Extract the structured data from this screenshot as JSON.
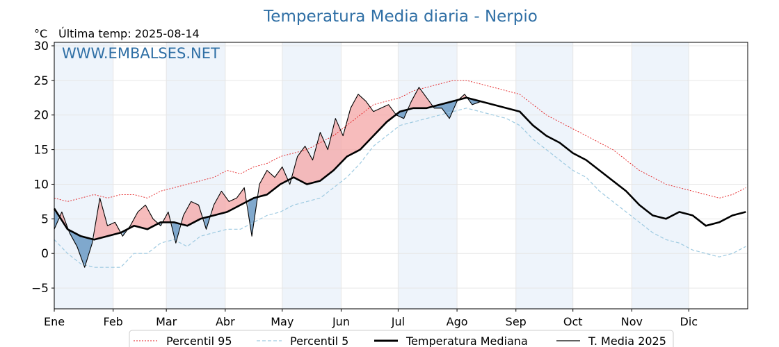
{
  "chart_data": {
    "type": "line",
    "title": "Temperatura Media diaria - Nerpio",
    "unit": "°C",
    "last_temp_label": "Última temp: 2025-08-14",
    "watermark": "WWW.EMBALSES.NET",
    "ylim": [
      -8,
      30.5
    ],
    "yticks": [
      -5,
      0,
      5,
      10,
      15,
      20,
      25,
      30
    ],
    "xlim": [
      1,
      366
    ],
    "months": [
      {
        "label": "Ene",
        "day": 1
      },
      {
        "label": "Feb",
        "day": 32
      },
      {
        "label": "Mar",
        "day": 60
      },
      {
        "label": "Abr",
        "day": 91
      },
      {
        "label": "May",
        "day": 121
      },
      {
        "label": "Jun",
        "day": 152
      },
      {
        "label": "Jul",
        "day": 182
      },
      {
        "label": "Ago",
        "day": 213
      },
      {
        "label": "Sep",
        "day": 244
      },
      {
        "label": "Oct",
        "day": 274
      },
      {
        "label": "Nov",
        "day": 305
      },
      {
        "label": "Dic",
        "day": 335
      }
    ],
    "grid": true,
    "legend_position": "bottom",
    "colors": {
      "p95": "#e31a1c",
      "p5": "#9ecae1",
      "median": "#000000",
      "current": "#000000",
      "above_fill": "#f4a6a6",
      "below_fill": "#6b9ac4",
      "shade": "#eef4fb",
      "title": "#2f6fa5"
    },
    "series": [
      {
        "key": "p95",
        "name": "Percentil 95",
        "x": [
          1,
          8,
          15,
          22,
          29,
          36,
          43,
          50,
          57,
          64,
          71,
          78,
          85,
          92,
          99,
          106,
          113,
          120,
          127,
          134,
          141,
          148,
          155,
          162,
          169,
          176,
          183,
          190,
          197,
          204,
          211,
          218,
          225,
          232,
          239,
          246,
          253,
          260,
          267,
          274,
          281,
          288,
          295,
          302,
          309,
          316,
          323,
          330,
          337,
          344,
          351,
          358,
          365
        ],
        "values": [
          8.0,
          7.5,
          8.0,
          8.5,
          8.0,
          8.5,
          8.5,
          8.0,
          9.0,
          9.5,
          10.0,
          10.5,
          11.0,
          12.0,
          11.5,
          12.5,
          13.0,
          14.0,
          14.5,
          15.0,
          16.0,
          17.0,
          18.5,
          20.0,
          21.5,
          22.0,
          22.5,
          23.5,
          24.0,
          24.5,
          25.0,
          25.0,
          24.5,
          24.0,
          23.5,
          23.0,
          21.5,
          20.0,
          19.0,
          18.0,
          17.0,
          16.0,
          15.0,
          13.5,
          12.0,
          11.0,
          10.0,
          9.5,
          9.0,
          8.5,
          8.0,
          8.5,
          9.5
        ]
      },
      {
        "key": "p5",
        "name": "Percentil 5",
        "x": [
          1,
          8,
          15,
          22,
          29,
          36,
          43,
          50,
          57,
          64,
          71,
          78,
          85,
          92,
          99,
          106,
          113,
          120,
          127,
          134,
          141,
          148,
          155,
          162,
          169,
          176,
          183,
          190,
          197,
          204,
          211,
          218,
          225,
          232,
          239,
          246,
          253,
          260,
          267,
          274,
          281,
          288,
          295,
          302,
          309,
          316,
          323,
          330,
          337,
          344,
          351,
          358,
          365
        ],
        "values": [
          2.0,
          0.0,
          -1.5,
          -2.0,
          -2.0,
          -2.0,
          0.0,
          0.0,
          1.5,
          2.0,
          1.0,
          2.5,
          3.0,
          3.5,
          3.5,
          4.5,
          5.5,
          6.0,
          7.0,
          7.5,
          8.0,
          9.5,
          11.0,
          13.0,
          15.5,
          17.0,
          18.5,
          19.0,
          19.5,
          20.0,
          20.5,
          21.0,
          20.5,
          20.0,
          19.5,
          18.5,
          16.5,
          15.0,
          13.5,
          12.0,
          11.0,
          9.0,
          7.5,
          6.0,
          4.5,
          3.0,
          2.0,
          1.5,
          0.5,
          0.0,
          -0.5,
          0.0,
          1.0
        ]
      },
      {
        "key": "median",
        "name": "Temperatura Mediana",
        "x": [
          1,
          8,
          15,
          22,
          29,
          36,
          43,
          50,
          57,
          64,
          71,
          78,
          85,
          92,
          99,
          106,
          113,
          120,
          127,
          134,
          141,
          148,
          155,
          162,
          169,
          176,
          183,
          190,
          197,
          204,
          211,
          218,
          225,
          232,
          239,
          246,
          253,
          260,
          267,
          274,
          281,
          288,
          295,
          302,
          309,
          316,
          323,
          330,
          337,
          344,
          351,
          358,
          365
        ],
        "values": [
          6.5,
          3.5,
          2.5,
          2.0,
          2.5,
          3.0,
          4.0,
          3.5,
          4.5,
          4.5,
          4.0,
          5.0,
          5.5,
          6.0,
          7.0,
          8.0,
          8.5,
          10.0,
          11.0,
          10.0,
          10.5,
          12.0,
          14.0,
          15.0,
          17.0,
          19.0,
          20.5,
          21.0,
          21.0,
          21.5,
          22.0,
          22.5,
          22.0,
          21.5,
          21.0,
          20.5,
          18.5,
          17.0,
          16.0,
          14.5,
          13.5,
          12.0,
          10.5,
          9.0,
          7.0,
          5.5,
          5.0,
          6.0,
          5.5,
          4.0,
          4.5,
          5.5,
          6.0
        ]
      },
      {
        "key": "current",
        "name": "T. Media 2025",
        "x": [
          1,
          5,
          9,
          13,
          17,
          21,
          25,
          29,
          33,
          37,
          41,
          45,
          49,
          53,
          57,
          61,
          65,
          69,
          73,
          77,
          81,
          85,
          89,
          93,
          97,
          101,
          105,
          109,
          113,
          117,
          121,
          125,
          129,
          133,
          137,
          141,
          145,
          149,
          153,
          157,
          161,
          165,
          169,
          173,
          177,
          181,
          185,
          189,
          193,
          197,
          201,
          205,
          209,
          213,
          217,
          221,
          226
        ],
        "values": [
          3.5,
          6.0,
          3.0,
          1.0,
          -2.0,
          1.5,
          8.0,
          4.0,
          4.5,
          2.5,
          4.0,
          6.0,
          7.0,
          5.0,
          4.0,
          6.0,
          1.5,
          5.5,
          7.5,
          7.0,
          3.5,
          7.0,
          9.0,
          7.5,
          8.0,
          9.5,
          2.5,
          10.0,
          12.0,
          11.0,
          12.5,
          10.0,
          14.0,
          15.5,
          13.5,
          17.5,
          15.0,
          19.5,
          17.0,
          21.0,
          23.0,
          22.0,
          20.5,
          21.0,
          21.5,
          20.0,
          19.5,
          22.0,
          24.0,
          22.5,
          21.0,
          21.0,
          19.5,
          22.0,
          23.0,
          21.5,
          22.0
        ]
      }
    ]
  }
}
